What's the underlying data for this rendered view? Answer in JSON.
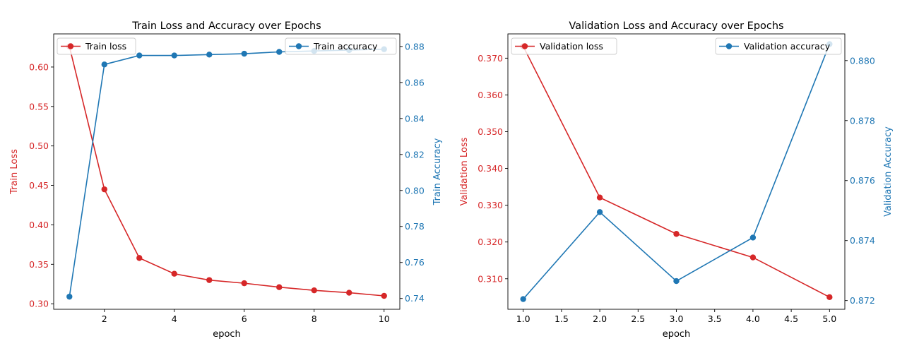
{
  "colors": {
    "loss": "#d62728",
    "accuracy": "#1f77b4",
    "axis": "#000000",
    "text": "#262626"
  },
  "chart_data": [
    {
      "type": "line",
      "title": "Train Loss and Accuracy over Epochs",
      "xlabel": "epoch",
      "ylabel_left": "Train Loss",
      "ylabel_right": "Train Accuracy",
      "x": [
        1,
        2,
        3,
        4,
        5,
        6,
        7,
        8,
        9,
        10
      ],
      "xlim": [
        0.55,
        10.45
      ],
      "xticks": [
        2,
        4,
        6,
        8,
        10
      ],
      "xtick_labels": [
        "2",
        "4",
        "6",
        "8",
        "10"
      ],
      "ylim_left": [
        0.293,
        0.642
      ],
      "yticks_left": [
        0.3,
        0.35,
        0.4,
        0.45,
        0.5,
        0.55,
        0.6
      ],
      "ytick_labels_left": [
        "0.30",
        "0.35",
        "0.40",
        "0.45",
        "0.50",
        "0.55",
        "0.60"
      ],
      "ylim_right": [
        0.734,
        0.887
      ],
      "yticks_right": [
        0.74,
        0.76,
        0.78,
        0.8,
        0.82,
        0.84,
        0.86,
        0.88
      ],
      "ytick_labels_right": [
        "0.74",
        "0.76",
        "0.78",
        "0.80",
        "0.82",
        "0.84",
        "0.86",
        "0.88"
      ],
      "series": [
        {
          "name": "Train loss",
          "axis": "left",
          "color": "#d62728",
          "values": [
            0.626,
            0.445,
            0.358,
            0.338,
            0.33,
            0.326,
            0.321,
            0.317,
            0.314,
            0.31
          ]
        },
        {
          "name": "Train accuracy",
          "axis": "right",
          "color": "#1f77b4",
          "values": [
            0.741,
            0.87,
            0.875,
            0.875,
            0.8755,
            0.876,
            0.877,
            0.8775,
            0.878,
            0.8785
          ]
        }
      ],
      "legend_left": "upper-left",
      "legend_right": "upper-right",
      "grid": false
    },
    {
      "type": "line",
      "title": "Validation Loss and Accuracy over Epochs",
      "xlabel": "epoch",
      "ylabel_left": "Validation Loss",
      "ylabel_right": "Validation Accuracy",
      "x": [
        1,
        2,
        3,
        4,
        5
      ],
      "xlim": [
        0.8,
        5.2
      ],
      "xticks": [
        1.0,
        1.5,
        2.0,
        2.5,
        3.0,
        3.5,
        4.0,
        4.5,
        5.0
      ],
      "xtick_labels": [
        "1.0",
        "1.5",
        "2.0",
        "2.5",
        "3.0",
        "3.5",
        "4.0",
        "4.5",
        "5.0"
      ],
      "ylim_left": [
        0.3017,
        0.3766
      ],
      "yticks_left": [
        0.31,
        0.32,
        0.33,
        0.34,
        0.35,
        0.36,
        0.37
      ],
      "ytick_labels_left": [
        "0.310",
        "0.320",
        "0.330",
        "0.340",
        "0.350",
        "0.360",
        "0.370"
      ],
      "ylim_right": [
        0.87171,
        0.88089
      ],
      "yticks_right": [
        0.872,
        0.874,
        0.876,
        0.878,
        0.88
      ],
      "ytick_labels_right": [
        "0.872",
        "0.874",
        "0.876",
        "0.878",
        "0.880"
      ],
      "series": [
        {
          "name": "Validation loss",
          "axis": "left",
          "color": "#d62728",
          "values": [
            0.3732,
            0.3321,
            0.3222,
            0.3158,
            0.305
          ]
        },
        {
          "name": "Validation accuracy",
          "axis": "right",
          "color": "#1f77b4",
          "values": [
            0.87205,
            0.87495,
            0.87265,
            0.8741,
            0.88055
          ]
        }
      ],
      "legend_left": "upper-left",
      "legend_right": "upper-right",
      "grid": false
    }
  ]
}
